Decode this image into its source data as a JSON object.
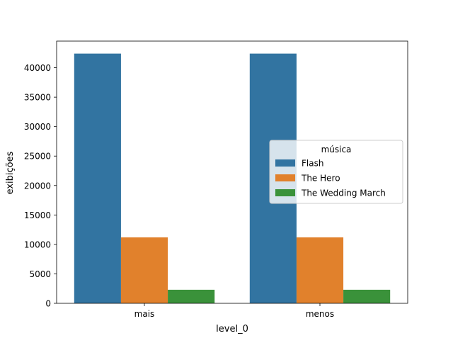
{
  "chart_data": {
    "type": "bar",
    "title": "",
    "xlabel": "level_0",
    "ylabel": "exibições",
    "categories": [
      "mais",
      "menos"
    ],
    "series": [
      {
        "name": "Flash",
        "values": [
          42400,
          42400
        ],
        "color": "#3274a1"
      },
      {
        "name": "The Hero",
        "values": [
          11200,
          11200
        ],
        "color": "#e1812c"
      },
      {
        "name": "The Wedding March",
        "values": [
          2300,
          2300
        ],
        "color": "#3a923a"
      }
    ],
    "ylim": [
      0,
      44520
    ],
    "yticks": [
      0,
      5000,
      10000,
      15000,
      20000,
      25000,
      30000,
      35000,
      40000
    ],
    "grid": false,
    "legend": {
      "title": "música",
      "placement": "center-right"
    }
  }
}
